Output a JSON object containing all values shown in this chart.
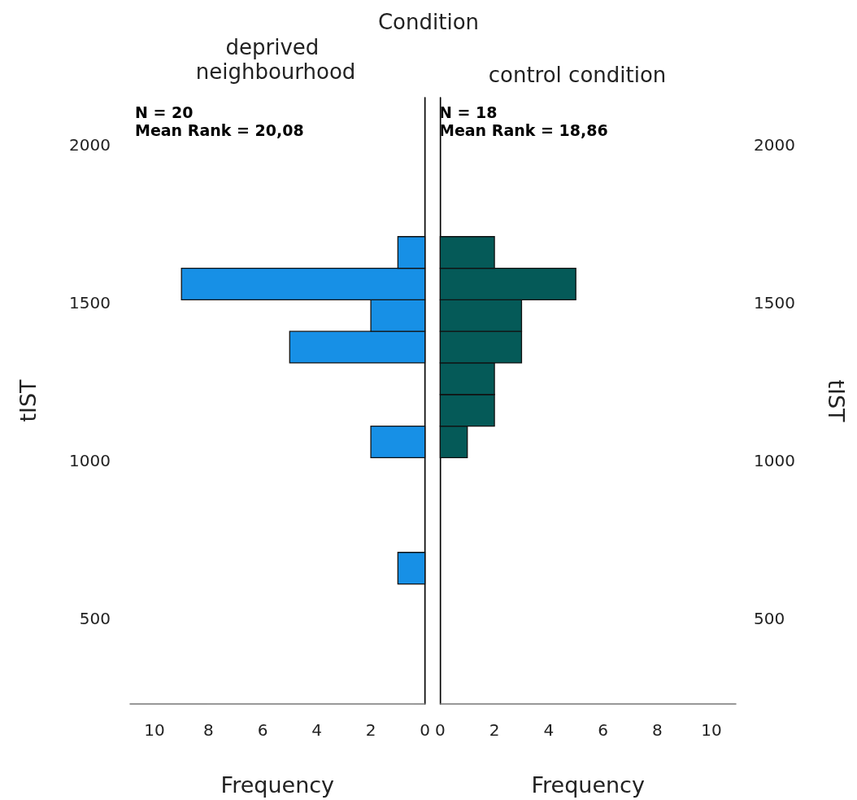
{
  "chart_data": [
    {
      "type": "histogram",
      "orientation": "horizontal",
      "title": "Condition",
      "subtitle": "deprived neighbourhood",
      "xlabel": "Frequency",
      "ylabel": "tIST",
      "color": "#1790e6",
      "bins": [
        610,
        710,
        810,
        910,
        1010,
        1110,
        1210,
        1310,
        1410,
        1510,
        1610,
        1710
      ],
      "values": [
        1,
        0,
        0,
        0,
        2,
        0,
        0,
        5,
        2,
        9,
        1
      ],
      "xlim": [
        10.9,
        0
      ],
      "xticks": [
        10,
        8,
        6,
        4,
        2,
        0
      ],
      "ylim": [
        230,
        2150
      ],
      "yticks": [
        500,
        1000,
        1500,
        2000
      ],
      "annotations": [
        "N = 20",
        "Mean Rank = 20,08"
      ],
      "grid": false
    },
    {
      "type": "histogram",
      "orientation": "horizontal",
      "subtitle": "control condition",
      "xlabel": "Frequency",
      "ylabel": "tIST",
      "color": "#055a58",
      "bins": [
        610,
        710,
        810,
        910,
        1010,
        1110,
        1210,
        1310,
        1410,
        1510,
        1610,
        1710
      ],
      "values": [
        0,
        0,
        0,
        0,
        1,
        2,
        2,
        3,
        3,
        5,
        2
      ],
      "xlim": [
        0,
        10.9
      ],
      "xticks": [
        0,
        2,
        4,
        6,
        8,
        10
      ],
      "ylim": [
        230,
        2150
      ],
      "yticks": [
        500,
        1000,
        1500,
        2000
      ],
      "annotations": [
        "N = 18",
        "Mean Rank = 18,86"
      ],
      "grid": false
    }
  ]
}
